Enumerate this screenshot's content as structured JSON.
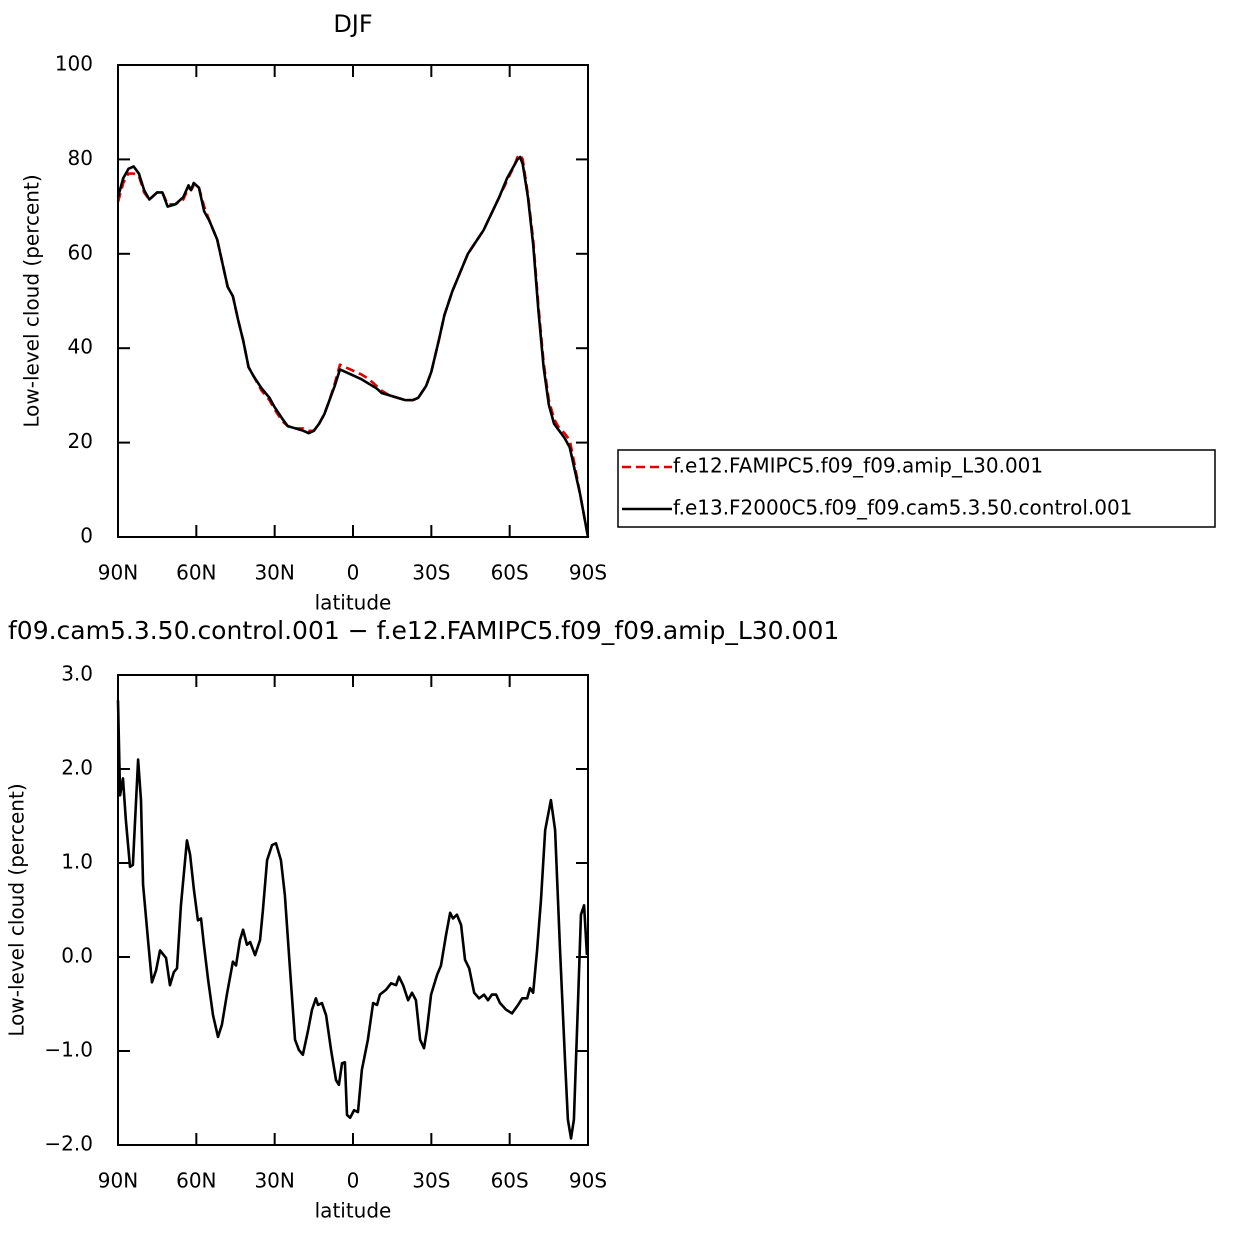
{
  "chart_data": [
    {
      "type": "line",
      "title": "DJF",
      "xlabel": "latitude",
      "ylabel": "Low-level cloud (percent)",
      "xlim": [
        90,
        -90
      ],
      "xticks": [
        {
          "value": 90,
          "label": "90N"
        },
        {
          "value": 60,
          "label": "60N"
        },
        {
          "value": 30,
          "label": "30N"
        },
        0,
        {
          "value": -30,
          "label": "30S"
        },
        {
          "value": -60,
          "label": "60S"
        },
        {
          "value": -90,
          "label": "90S"
        }
      ],
      "ylim": [
        0,
        100
      ],
      "yticks": [
        0,
        20,
        40,
        60,
        80,
        100
      ],
      "legend": "right",
      "x": [
        90,
        88,
        86,
        84,
        82,
        80,
        78,
        75,
        73,
        71,
        68,
        65,
        63,
        62,
        61,
        59,
        57,
        55,
        52,
        50,
        48,
        46,
        44,
        42,
        40,
        38,
        35,
        32,
        30,
        27,
        25,
        22,
        19,
        17,
        15,
        13,
        11,
        9,
        7,
        5,
        3,
        1,
        -1,
        -3,
        -6,
        -9,
        -11,
        -14,
        -17,
        -20,
        -23,
        -25,
        -28,
        -30,
        -33,
        -35,
        -38,
        -41,
        -44,
        -47,
        -50,
        -53,
        -56,
        -59,
        -62,
        -63,
        -64,
        -65,
        -67,
        -69,
        -71,
        -73,
        -75,
        -77,
        -79,
        -81,
        -83,
        -85,
        -87,
        -89,
        -90
      ],
      "series": [
        {
          "name": "f.e12.FAMIPC5.f09_f09.amip_L30.001",
          "color": "#e00000",
          "linestyle": "dashed",
          "values": [
            71,
            75,
            77,
            77,
            76.5,
            73,
            71.5,
            73,
            73,
            70.5,
            70.5,
            71.5,
            74,
            73.5,
            74.5,
            74,
            70,
            67,
            63,
            58,
            53,
            51,
            46,
            41.5,
            36,
            34,
            31,
            29,
            27,
            24.5,
            23.5,
            23,
            23,
            22.5,
            22.5,
            24,
            26,
            29,
            32.5,
            36.5,
            36,
            35.5,
            35,
            34.5,
            33.5,
            32,
            31,
            30,
            29.5,
            29,
            29,
            29.5,
            32,
            35,
            42,
            47,
            52,
            56,
            60,
            62.5,
            65,
            68.5,
            72,
            75.5,
            79,
            80.5,
            81,
            80,
            72.5,
            63,
            49,
            37,
            29,
            25,
            23,
            22,
            20.5,
            15,
            9,
            3,
            0
          ]
        },
        {
          "name": "f.e13.F2000C5.f09_f09.cam5.3.50.control.001",
          "color": "#000000",
          "linestyle": "solid",
          "values": [
            72,
            76,
            78,
            78.5,
            77,
            73.5,
            71.5,
            73,
            73,
            70,
            70.5,
            72,
            74.5,
            73.5,
            75,
            74,
            69,
            67,
            63,
            58,
            53,
            51,
            46,
            41.5,
            36,
            34,
            31.5,
            29.5,
            27.5,
            25,
            23.5,
            23,
            22.5,
            22,
            22.5,
            24,
            26,
            29,
            32,
            35.5,
            35,
            34.5,
            34,
            33.5,
            32.5,
            31.5,
            30.5,
            30,
            29.5,
            29,
            29,
            29.5,
            32,
            35,
            42,
            47,
            52,
            56,
            60,
            62.5,
            65,
            68.5,
            72,
            76,
            79,
            80,
            80.5,
            79,
            72,
            62,
            48,
            36,
            28,
            24,
            22.5,
            21,
            19,
            14,
            9,
            3,
            0
          ]
        }
      ]
    },
    {
      "type": "line",
      "title": "f09.cam5.3.50.control.001 − f.e12.FAMIPC5.f09_f09.amip_L30.001",
      "xlabel": "latitude",
      "ylabel": "Low-level cloud (percent)",
      "xlim": [
        90,
        -90
      ],
      "xticks": [
        {
          "value": 90,
          "label": "90N"
        },
        {
          "value": 60,
          "label": "60N"
        },
        {
          "value": 30,
          "label": "30N"
        },
        0,
        {
          "value": -30,
          "label": "30S"
        },
        {
          "value": -60,
          "label": "60S"
        },
        {
          "value": -90,
          "label": "90S"
        }
      ],
      "ylim": [
        -2,
        3
      ],
      "yticks": [
        {
          "value": -2,
          "label": "−2.0"
        },
        {
          "value": -1,
          "label": "−1.0"
        },
        {
          "value": 0,
          "label": "0.0"
        },
        {
          "value": 1,
          "label": "1.0"
        },
        {
          "value": 2,
          "label": "2.0"
        },
        {
          "value": 3,
          "label": "3.0"
        }
      ],
      "x": [
        90,
        89.2,
        88.1,
        87,
        85.4,
        84.3,
        82.3,
        81.2,
        80.4,
        78.5,
        77,
        75.4,
        73.9,
        71.6,
        70.1,
        68.6,
        67.4,
        65.9,
        63.6,
        62.4,
        60.9,
        59.4,
        58.2,
        57.1,
        55.5,
        53.6,
        51.7,
        50.2,
        48.3,
        46,
        44.8,
        43.3,
        42.1,
        40.6,
        39.4,
        37.5,
        35.6,
        34.5,
        32.9,
        31,
        29.5,
        27.6,
        26.1,
        24.1,
        22.2,
        20.7,
        19.2,
        17.2,
        15.7,
        14.2,
        13.4,
        11.9,
        10.3,
        8.4,
        6.5,
        5.4,
        4.2,
        3.1,
        2.3,
        1.1,
        -0.4,
        -1.9,
        -3.4,
        -5.7,
        -7.7,
        -9.2,
        -10.3,
        -12.6,
        -14.6,
        -16.5,
        -17.6,
        -19.2,
        -21.1,
        -22.6,
        -24.1,
        -25.7,
        -27.2,
        -28.3,
        -29.9,
        -32.2,
        -33.7,
        -35.6,
        -37.2,
        -38.3,
        -39.8,
        -41.4,
        -42.9,
        -44.5,
        -46.4,
        -48.3,
        -50.2,
        -51.7,
        -53.2,
        -54.8,
        -56.3,
        -58.6,
        -60.9,
        -63.2,
        -64.8,
        -66.7,
        -67.8,
        -69,
        -70.5,
        -72,
        -73.6,
        -74.7,
        -75.8,
        -77.4,
        -79.3,
        -81.2,
        -82.3,
        -83.5,
        -84.6,
        -86.2,
        -87.3,
        -88.5,
        -89.6
      ],
      "series": [
        {
          "color": "#000000",
          "linestyle": "solid",
          "values": [
            2.73,
            1.72,
            1.9,
            1.46,
            0.96,
            0.98,
            2.1,
            1.67,
            0.77,
            0.18,
            -0.27,
            -0.14,
            0.07,
            -0.01,
            -0.3,
            -0.16,
            -0.12,
            0.55,
            1.24,
            1.09,
            0.71,
            0.39,
            0.41,
            0.13,
            -0.24,
            -0.62,
            -0.85,
            -0.72,
            -0.4,
            -0.05,
            -0.09,
            0.18,
            0.29,
            0.13,
            0.16,
            0.02,
            0.18,
            0.5,
            1.03,
            1.19,
            1.21,
            1.03,
            0.66,
            -0.14,
            -0.88,
            -0.99,
            -1.04,
            -0.78,
            -0.56,
            -0.44,
            -0.51,
            -0.49,
            -0.62,
            -0.99,
            -1.31,
            -1.36,
            -1.13,
            -1.12,
            -1.68,
            -1.71,
            -1.63,
            -1.65,
            -1.2,
            -0.88,
            -0.49,
            -0.51,
            -0.4,
            -0.35,
            -0.28,
            -0.3,
            -0.21,
            -0.3,
            -0.46,
            -0.38,
            -0.46,
            -0.88,
            -0.97,
            -0.78,
            -0.4,
            -0.19,
            -0.09,
            0.23,
            0.47,
            0.41,
            0.45,
            0.34,
            -0.03,
            -0.12,
            -0.38,
            -0.44,
            -0.4,
            -0.46,
            -0.4,
            -0.4,
            -0.49,
            -0.56,
            -0.6,
            -0.51,
            -0.44,
            -0.44,
            -0.33,
            -0.38,
            0.07,
            0.61,
            1.35,
            1.51,
            1.67,
            1.35,
            0.07,
            -1.1,
            -1.73,
            -1.93,
            -1.73,
            -0.46,
            0.45,
            0.55,
            0.02
          ]
        }
      ]
    }
  ]
}
